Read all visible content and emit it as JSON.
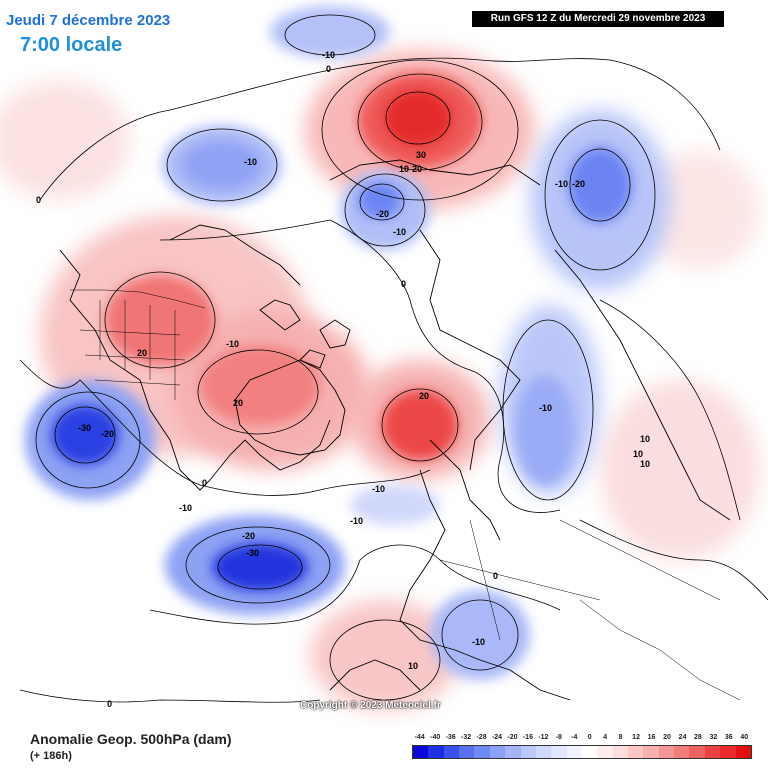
{
  "header": {
    "date": "Jeudi 7 décembre 2023",
    "time": "7:00 locale",
    "run": "Run GFS 12 Z du Mercredi 29 novembre 2023"
  },
  "footer": {
    "title": "Anomalie Geop. 500hPa (dam)",
    "lead": "(+ 186h)",
    "copyright": "Copyright © 2023 Meteociel.fr"
  },
  "scale": {
    "labels": [
      "-44",
      "-40",
      "-36",
      "-32",
      "-28",
      "-24",
      "-20",
      "-16",
      "-12",
      "-8",
      "-4",
      "0",
      "4",
      "8",
      "12",
      "16",
      "20",
      "24",
      "28",
      "32",
      "36",
      "40"
    ],
    "colors": [
      "#0a0ad8",
      "#1f2fe6",
      "#3a52ec",
      "#5670f0",
      "#7189f3",
      "#8ca0f5",
      "#a5b4f7",
      "#bcc7f9",
      "#d0d8fb",
      "#e2e7fd",
      "#f1f3fe",
      "#ffffff",
      "#fdeeee",
      "#fcdcdc",
      "#fac6c6",
      "#f8afaf",
      "#f59696",
      "#f27c7c",
      "#ef6060",
      "#ec4444",
      "#e82a2a",
      "#e41010"
    ]
  },
  "contour_labels": [
    {
      "text": "-10",
      "name": "label-neg10-alaska-north"
    },
    {
      "text": "0",
      "name": "label-0-alaska-north"
    },
    {
      "text": "-10",
      "name": "label-neg10-alaska"
    },
    {
      "text": "0",
      "name": "label-0-west"
    },
    {
      "text": "30",
      "name": "label-30-siberia"
    },
    {
      "text": "10",
      "name": "label-10-siberia-a"
    },
    {
      "text": "20",
      "name": "label-20-siberia"
    },
    {
      "text": "-20",
      "name": "label-neg20-pacific"
    },
    {
      "text": "-10",
      "name": "label-neg10-pacific"
    },
    {
      "text": "-10",
      "name": "label-neg10-east-a"
    },
    {
      "text": "-20",
      "name": "label-neg20-east"
    },
    {
      "text": "0",
      "name": "label-0-arctic"
    },
    {
      "text": "20",
      "name": "label-20-canada"
    },
    {
      "text": "-10",
      "name": "label-neg10-arctic"
    },
    {
      "text": "20",
      "name": "label-20-greenland"
    },
    {
      "text": "20",
      "name": "label-20-atlantic"
    },
    {
      "text": "-30",
      "name": "label-neg30-west-low"
    },
    {
      "text": "-20",
      "name": "label-neg20-west-low"
    },
    {
      "text": "0",
      "name": "label-0-southwest"
    },
    {
      "text": "-10",
      "name": "label-neg10-southwest"
    },
    {
      "text": "-20",
      "name": "label-neg20-south-low"
    },
    {
      "text": "-30",
      "name": "label-neg30-south-low"
    },
    {
      "text": "-10",
      "name": "label-neg10-central-a"
    },
    {
      "text": "-10",
      "name": "label-neg10-central-b"
    },
    {
      "text": "-10",
      "name": "label-neg10-east-trough"
    },
    {
      "text": "10",
      "name": "label-10-east-a"
    },
    {
      "text": "10",
      "name": "label-10-east-b"
    },
    {
      "text": "10",
      "name": "label-10-east-c"
    },
    {
      "text": "0",
      "name": "label-0-europe"
    },
    {
      "text": "-10",
      "name": "label-neg10-europe"
    },
    {
      "text": "10",
      "name": "label-10-south"
    },
    {
      "text": "0",
      "name": "label-0-bottom-left"
    }
  ]
}
